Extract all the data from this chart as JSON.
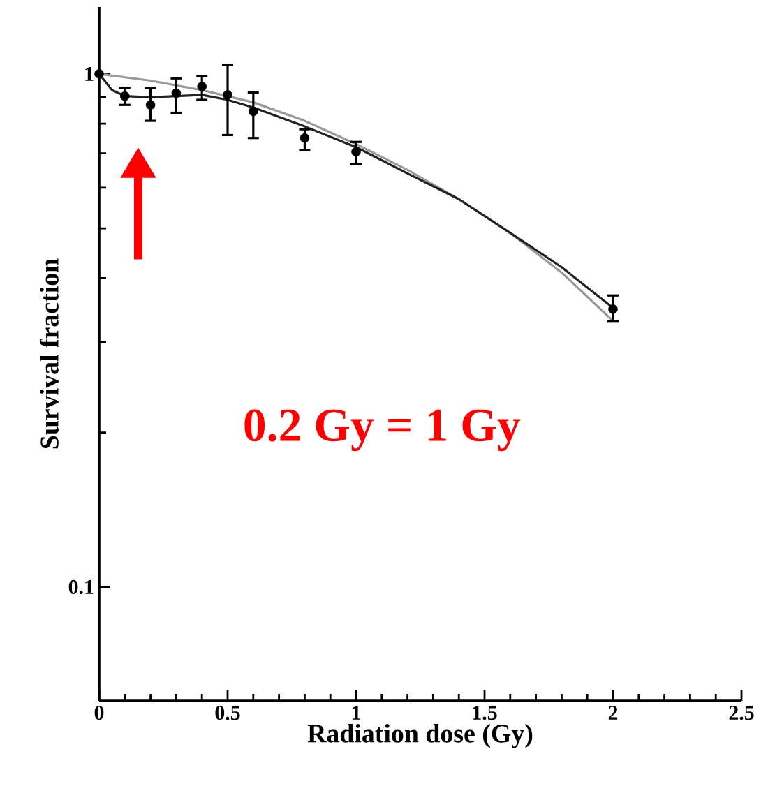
{
  "chart_data": {
    "type": "scatter",
    "xlabel": "Radiation dose (Gy)",
    "ylabel": "Survival fraction",
    "log": "y",
    "xlim": [
      0,
      2.5
    ],
    "ylim": [
      0.06,
      1.35
    ],
    "xticks": [
      0,
      0.5,
      1,
      1.5,
      2,
      2.5
    ],
    "yticks": [
      0.1,
      1
    ],
    "series": [
      {
        "type": "line",
        "marker": "none",
        "color": "#999999",
        "x": [
          0,
          0.2,
          0.4,
          0.6,
          0.8,
          1.0,
          1.2,
          1.4,
          1.6,
          1.8,
          2.0
        ],
        "values": [
          1.0,
          0.97,
          0.93,
          0.88,
          0.81,
          0.73,
          0.65,
          0.57,
          0.49,
          0.41,
          0.33
        ]
      },
      {
        "type": "line",
        "marker": "none",
        "color": "#222222",
        "x": [
          0,
          0.05,
          0.1,
          0.2,
          0.3,
          0.4,
          0.5,
          0.6,
          0.8,
          1.0,
          1.2,
          1.4,
          1.6,
          1.8,
          2.0
        ],
        "values": [
          1.0,
          0.93,
          0.905,
          0.9,
          0.905,
          0.91,
          0.89,
          0.86,
          0.79,
          0.72,
          0.64,
          0.57,
          0.49,
          0.42,
          0.35
        ]
      },
      {
        "marker": "circle",
        "color": "#000000",
        "x": [
          0,
          0.1,
          0.2,
          0.3,
          0.4,
          0.5,
          0.6,
          0.8,
          1.0,
          2.0
        ],
        "values": [
          1.0,
          0.905,
          0.87,
          0.917,
          0.945,
          0.91,
          0.845,
          0.75,
          0.705,
          0.348
        ],
        "errors": [
          null,
          [
            0.87,
            0.94
          ],
          [
            0.81,
            0.94
          ],
          [
            0.84,
            0.98
          ],
          [
            0.89,
            0.99
          ],
          [
            0.76,
            1.04
          ],
          [
            0.75,
            0.92
          ],
          [
            0.71,
            0.78
          ],
          [
            0.667,
            0.737
          ],
          [
            0.33,
            0.37
          ]
        ]
      }
    ],
    "annotations": [
      "0.2 Gy = 1 Gy"
    ]
  }
}
